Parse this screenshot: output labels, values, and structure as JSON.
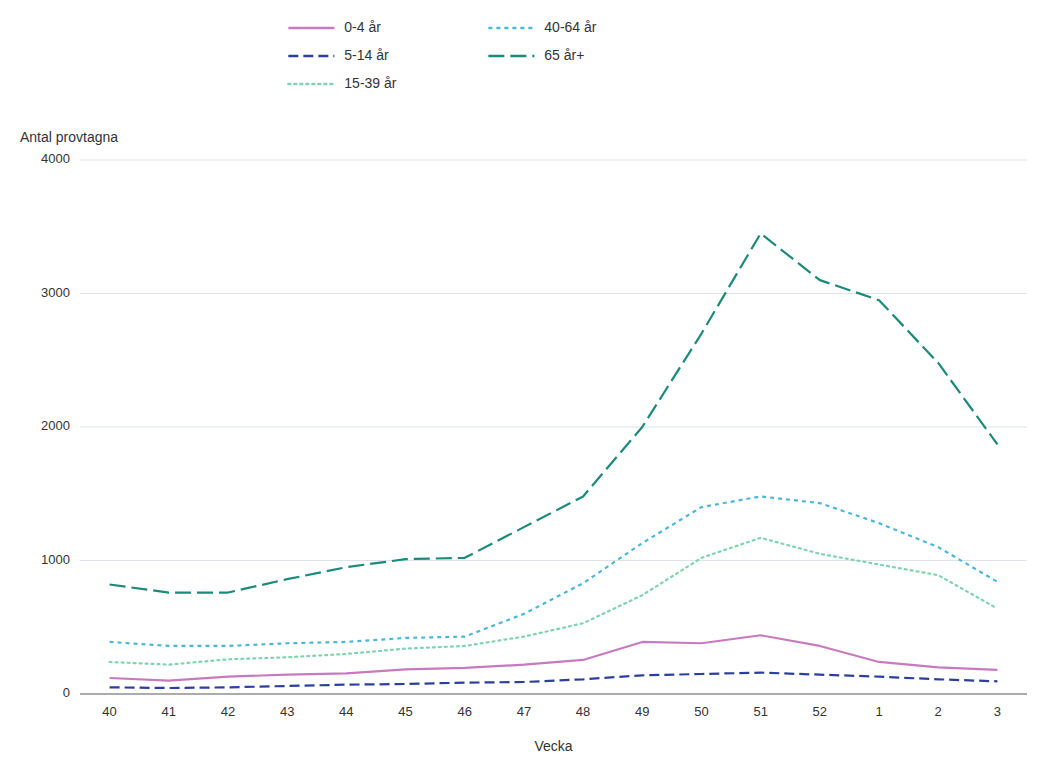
{
  "chart_data": {
    "type": "line",
    "categories": [
      "40",
      "41",
      "42",
      "43",
      "44",
      "45",
      "46",
      "47",
      "48",
      "49",
      "50",
      "51",
      "52",
      "1",
      "2",
      "3"
    ],
    "series": [
      {
        "name": "0-4 år",
        "color": "#c87abe",
        "line_style": "solid",
        "values": [
          120,
          100,
          130,
          145,
          155,
          185,
          195,
          220,
          255,
          390,
          380,
          440,
          360,
          240,
          200,
          180
        ]
      },
      {
        "name": "5-14 år",
        "color": "#2b3f9e",
        "line_style": "dashed",
        "values": [
          50,
          45,
          50,
          60,
          70,
          75,
          85,
          90,
          110,
          140,
          150,
          160,
          145,
          130,
          110,
          95
        ]
      },
      {
        "name": "15-39 år",
        "color": "#7fd4b0",
        "line_style": "dotted",
        "values": [
          240,
          220,
          260,
          275,
          300,
          340,
          360,
          430,
          530,
          740,
          1020,
          1170,
          1050,
          970,
          890,
          640
        ]
      },
      {
        "name": "40-64 år",
        "color": "#4ab8d8",
        "line_style": "short-dashed",
        "values": [
          390,
          360,
          360,
          380,
          390,
          420,
          430,
          600,
          830,
          1130,
          1400,
          1480,
          1430,
          1280,
          1100,
          840
        ]
      },
      {
        "name": "65 år+",
        "color": "#1a8a7a",
        "line_style": "long-dashed",
        "values": [
          820,
          760,
          760,
          860,
          950,
          1010,
          1020,
          1250,
          1480,
          2000,
          2700,
          3450,
          3100,
          2950,
          2480,
          1870
        ]
      }
    ],
    "x_label": "Vecka",
    "y_label": "Antal provtagna",
    "ylim": [
      0,
      4000
    ],
    "yticks": [
      0,
      1000,
      2000,
      3000,
      4000
    ],
    "grid": true,
    "legend": "top"
  }
}
